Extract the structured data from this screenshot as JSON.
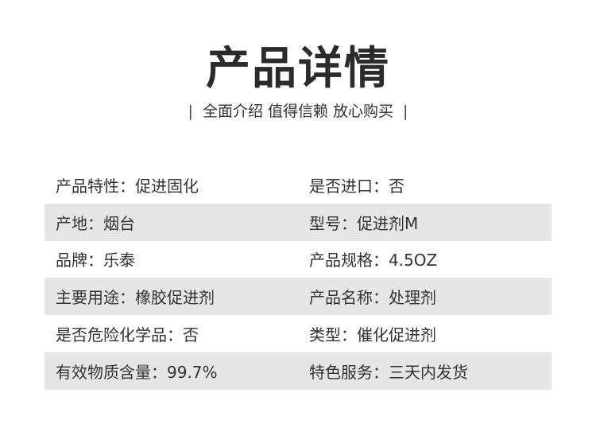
{
  "header": {
    "title": "产品详情",
    "subtitle": "全面介绍 值得信赖 放心购买",
    "divider": "|"
  },
  "specs": [
    [
      "产品特性：促进固化",
      "是否进口：否"
    ],
    [
      "产地：烟台",
      "型号：促进剂M"
    ],
    [
      "品牌：乐泰",
      "产品规格：4.5OZ"
    ],
    [
      "主要用途：橡胶促进剂",
      "产品名称：处理剂"
    ],
    [
      "是否危险化学品：否",
      "类型：催化促进剂"
    ],
    [
      "有效物质含量：99.7%",
      "特色服务：三天内发货"
    ]
  ],
  "colors": {
    "stripe": "#e6e6e6",
    "text": "#333333"
  }
}
